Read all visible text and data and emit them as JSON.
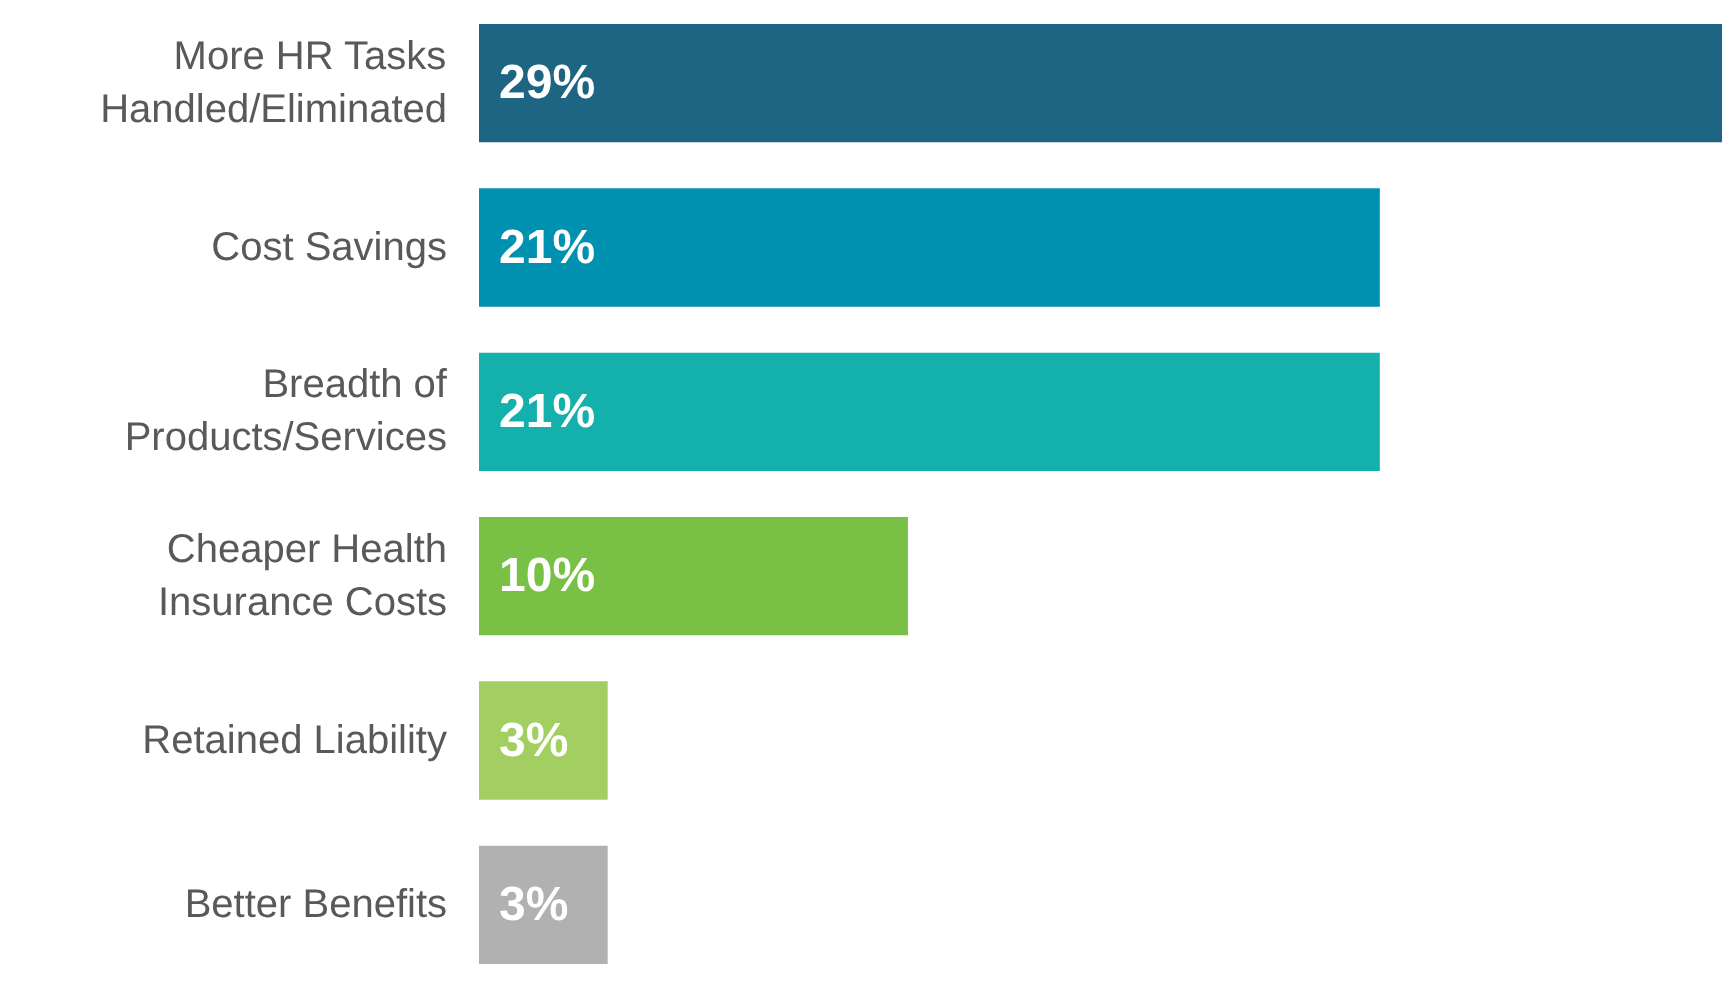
{
  "chart_data": {
    "type": "bar",
    "orientation": "horizontal",
    "categories": [
      "More HR Tasks\nHandled/Eliminated",
      "Cost Savings",
      "Breadth of\nProducts/Services",
      "Cheaper Health\nInsurance Costs",
      "Retained Liability",
      "Better Benefits"
    ],
    "values": [
      29,
      21,
      21,
      10,
      3,
      3
    ],
    "colors": [
      "#1d6582",
      "#0090b0",
      "#14b0ab",
      "#78c145",
      "#a3cf62",
      "#b1b1b1"
    ],
    "value_labels": [
      "29%",
      "21%",
      "21%",
      "10%",
      "3%",
      "3%"
    ],
    "grid": false
  }
}
